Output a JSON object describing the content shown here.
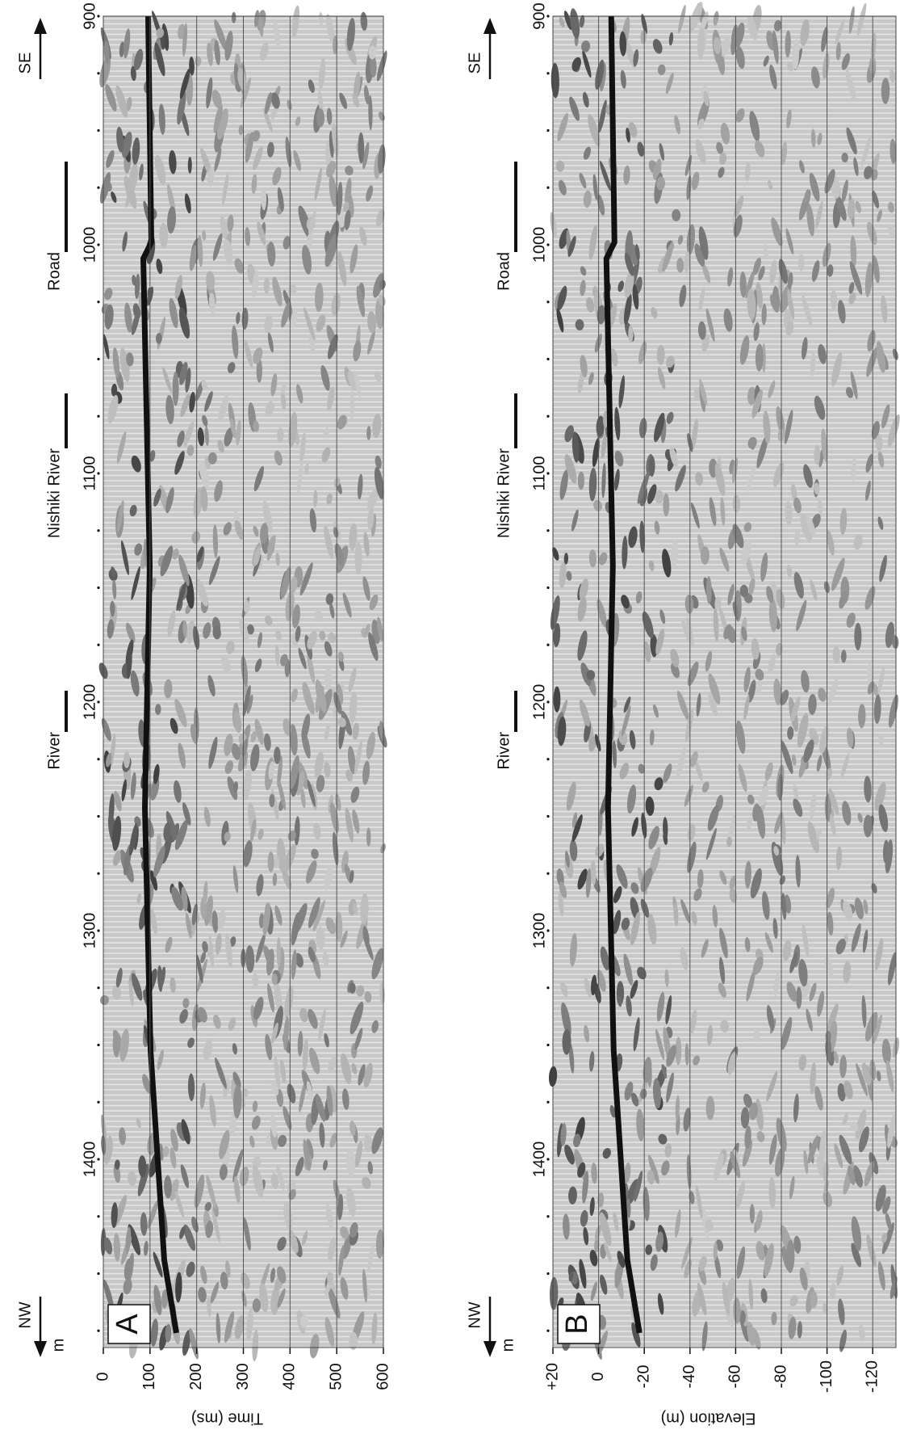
{
  "panels": [
    {
      "letter": "A",
      "axis_title": "Time (ms)",
      "unit": "m",
      "depth_ticks": [
        "0",
        "100",
        "200",
        "300",
        "400",
        "500",
        "600"
      ],
      "distance_ticks": [
        "900",
        "1000",
        "1100",
        "1200",
        "1300",
        "1400"
      ],
      "direction_left": "NW",
      "direction_right": "SE",
      "landmarks": [
        "Road",
        "Nishiki River",
        "River"
      ]
    },
    {
      "letter": "B",
      "axis_title": "Elevation (m)",
      "unit": "m",
      "depth_ticks": [
        "+20",
        "0",
        "-20",
        "-40",
        "-60",
        "-80",
        "-100",
        "-120"
      ],
      "distance_ticks": [
        "900",
        "1000",
        "1100",
        "1200",
        "1300",
        "1400"
      ],
      "direction_left": "NW",
      "direction_right": "SE",
      "landmarks": [
        "Road",
        "Nishiki River",
        "River"
      ]
    }
  ]
}
